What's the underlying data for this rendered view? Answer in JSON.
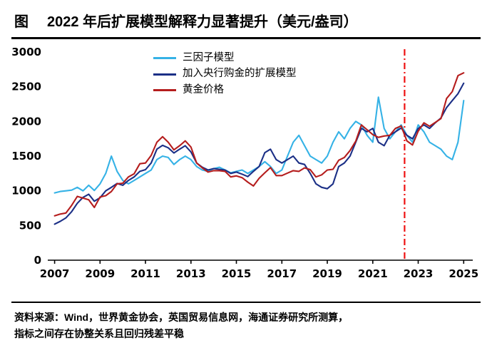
{
  "header": {
    "prefix": "图",
    "title": "2022 年后扩展模型解释力显著提升（美元/盎司）"
  },
  "footer": {
    "line1": "资料来源：Wind，世界黄金协会，英国贸易信息网，海通证券研究所测算，",
    "line2": "指标之间存在协整关系且回归残差平稳"
  },
  "chart_data": {
    "type": "line",
    "title": "2022 年后扩展模型解释力显著提升（美元/盎司）",
    "xlabel": "",
    "ylabel": "",
    "grid": false,
    "legend_position": "top-center",
    "xlim": [
      2006.7,
      2025.4
    ],
    "ylim": [
      0,
      3000
    ],
    "yticks": [
      0,
      500,
      1000,
      1500,
      2000,
      2500,
      3000
    ],
    "xticks": [
      2007,
      2009,
      2011,
      2013,
      2015,
      2017,
      2019,
      2021,
      2023,
      2025
    ],
    "annotation_vline": {
      "x": 2022.4,
      "color": "#ee1111",
      "style": "dash-dot"
    },
    "x": [
      2007,
      2007.25,
      2007.5,
      2007.75,
      2008,
      2008.25,
      2008.5,
      2008.75,
      2009,
      2009.25,
      2009.5,
      2009.75,
      2010,
      2010.25,
      2010.5,
      2010.75,
      2011,
      2011.25,
      2011.5,
      2011.75,
      2012,
      2012.25,
      2012.5,
      2012.75,
      2013,
      2013.25,
      2013.5,
      2013.75,
      2014,
      2014.25,
      2014.5,
      2014.75,
      2015,
      2015.25,
      2015.5,
      2015.75,
      2016,
      2016.25,
      2016.5,
      2016.75,
      2017,
      2017.25,
      2017.5,
      2017.75,
      2018,
      2018.25,
      2018.5,
      2018.75,
      2019,
      2019.25,
      2019.5,
      2019.75,
      2020,
      2020.25,
      2020.5,
      2020.75,
      2021,
      2021.25,
      2021.5,
      2021.75,
      2022,
      2022.25,
      2022.5,
      2022.75,
      2023,
      2023.25,
      2023.5,
      2023.75,
      2024,
      2024.25,
      2024.5,
      2024.75,
      2025
    ],
    "series": [
      {
        "name": "三因子模型",
        "color": "#35b2e6",
        "values": [
          970,
          990,
          1000,
          1010,
          1050,
          1000,
          1080,
          1005,
          1100,
          1250,
          1500,
          1280,
          1150,
          1100,
          1150,
          1200,
          1250,
          1300,
          1450,
          1500,
          1480,
          1380,
          1450,
          1500,
          1450,
          1350,
          1300,
          1280,
          1320,
          1340,
          1300,
          1260,
          1280,
          1300,
          1250,
          1300,
          1350,
          1420,
          1350,
          1250,
          1300,
          1500,
          1700,
          1800,
          1650,
          1500,
          1450,
          1400,
          1500,
          1700,
          1850,
          1750,
          1900,
          2000,
          1950,
          1800,
          1700,
          2350,
          1900,
          1750,
          1850,
          1950,
          1800,
          1700,
          1950,
          1850,
          1700,
          1650,
          1600,
          1500,
          1450,
          1700,
          2300
        ]
      },
      {
        "name": "加入央行购金的扩展模型",
        "color": "#1b2f86",
        "values": [
          520,
          560,
          610,
          700,
          820,
          905,
          950,
          850,
          900,
          1000,
          1050,
          1105,
          1080,
          1150,
          1200,
          1280,
          1305,
          1400,
          1600,
          1655,
          1620,
          1545,
          1600,
          1650,
          1560,
          1400,
          1340,
          1300,
          1320,
          1310,
          1300,
          1250,
          1270,
          1240,
          1205,
          1280,
          1350,
          1550,
          1600,
          1450,
          1400,
          1450,
          1500,
          1400,
          1380,
          1250,
          1100,
          1050,
          1030,
          1100,
          1350,
          1400,
          1500,
          1700,
          1900,
          1850,
          1900,
          1700,
          1650,
          1800,
          1850,
          1905,
          1800,
          1750,
          1900,
          1950,
          1900,
          1980,
          2050,
          2200,
          2300,
          2400,
          2550
        ]
      },
      {
        "name": "黄金价格",
        "color": "#b51d1d",
        "values": [
          640,
          665,
          680,
          790,
          920,
          895,
          870,
          760,
          910,
          930,
          990,
          1100,
          1110,
          1200,
          1245,
          1390,
          1400,
          1510,
          1700,
          1780,
          1700,
          1590,
          1650,
          1720,
          1630,
          1400,
          1330,
          1270,
          1290,
          1290,
          1280,
          1200,
          1215,
          1190,
          1125,
          1070,
          1180,
          1260,
          1335,
          1220,
          1220,
          1255,
          1290,
          1280,
          1330,
          1305,
          1200,
          1230,
          1300,
          1310,
          1440,
          1480,
          1580,
          1715,
          1950,
          1880,
          1810,
          1770,
          1790,
          1800,
          1900,
          1935,
          1720,
          1660,
          1860,
          1980,
          1930,
          1985,
          2040,
          2330,
          2430,
          2660,
          2700
        ]
      }
    ]
  }
}
